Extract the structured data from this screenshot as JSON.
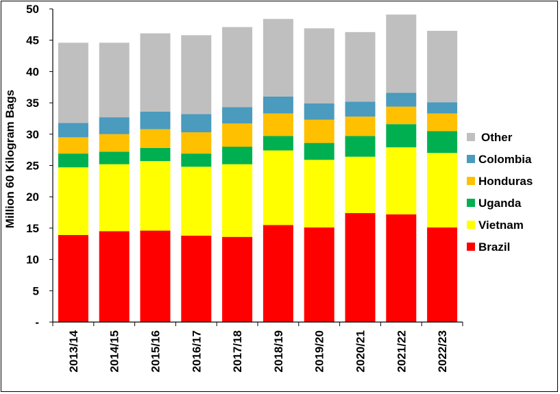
{
  "chart_data": {
    "type": "bar",
    "stacked": true,
    "title": "",
    "xlabel": "",
    "ylabel": "Million 60 Kilogram Bags",
    "ylim": [
      0,
      50
    ],
    "yticks": [
      "-",
      "5",
      "10",
      "15",
      "20",
      "25",
      "30",
      "35",
      "40",
      "45",
      "50"
    ],
    "grid": false,
    "legend_position": "right",
    "categories": [
      "2013/14",
      "2014/15",
      "2015/16",
      "2016/17",
      "2017/18",
      "2018/19",
      "2019/20",
      "2020/21",
      "2021/22",
      "2022/23"
    ],
    "series": [
      {
        "name": "Brazil",
        "color": "#ff0000",
        "values": [
          13.9,
          14.5,
          14.6,
          13.8,
          13.6,
          15.5,
          15.1,
          17.4,
          17.2,
          15.1
        ]
      },
      {
        "name": "Vietnam",
        "color": "#ffff00",
        "values": [
          10.8,
          10.7,
          11.1,
          11.0,
          11.6,
          11.9,
          10.8,
          9.0,
          10.7,
          11.9
        ]
      },
      {
        "name": "Uganda",
        "color": "#00b050",
        "values": [
          2.2,
          2.0,
          2.1,
          2.1,
          2.8,
          2.3,
          2.7,
          3.3,
          3.7,
          3.5
        ]
      },
      {
        "name": "Honduras",
        "color": "#ffc000",
        "values": [
          2.6,
          2.8,
          3.0,
          3.4,
          3.7,
          3.6,
          3.7,
          3.1,
          2.8,
          2.8
        ]
      },
      {
        "name": "Colombia",
        "color": "#4a9bbd",
        "values": [
          2.3,
          2.7,
          2.8,
          2.9,
          2.6,
          2.7,
          2.6,
          2.4,
          2.2,
          1.8
        ]
      },
      {
        "name": "Other",
        "color": "#bfbfbf",
        "values": [
          12.8,
          11.9,
          12.5,
          12.6,
          12.8,
          12.4,
          12.0,
          11.1,
          12.5,
          11.4
        ]
      }
    ],
    "legend_order": [
      "Other",
      "Colombia",
      "Honduras",
      "Uganda",
      "Vietnam",
      "Brazil"
    ]
  }
}
